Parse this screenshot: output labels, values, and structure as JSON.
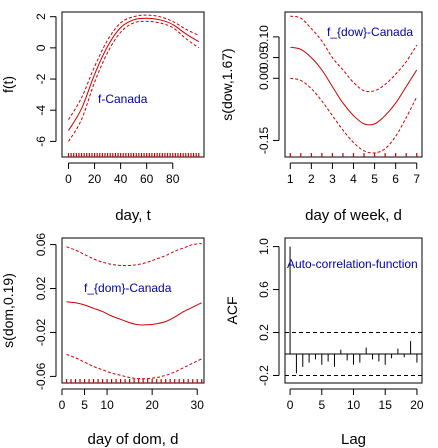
{
  "colors": {
    "fit": "#cc0000",
    "band": "#cc0000",
    "annotation": "#0000aa",
    "rug": "#cc0000",
    "ci": "#000000",
    "acf": "#000000"
  },
  "chart_data": [
    {
      "type": "line",
      "id": "trend",
      "annotation": "f-Canada",
      "xlabel": "day, t",
      "ylabel": "f(t)",
      "xlim": [
        -5,
        104
      ],
      "ylim": [
        -7,
        2.3
      ],
      "xticks": [
        0,
        20,
        40,
        60,
        80
      ],
      "yticks": [
        -6,
        -4,
        -2,
        0,
        2
      ],
      "grid": false,
      "rug": {
        "from": 0,
        "to": 100,
        "step": 2
      },
      "series": [
        {
          "role": "lower",
          "x": [
            0,
            10,
            20,
            30,
            40,
            50,
            60,
            70,
            80,
            90,
            100
          ],
          "y": [
            -6.0,
            -4.6,
            -2.2,
            -0.3,
            1.0,
            1.6,
            1.7,
            1.6,
            1.3,
            0.6,
            0.0
          ]
        },
        {
          "role": "fit",
          "x": [
            0,
            10,
            20,
            30,
            40,
            50,
            60,
            70,
            80,
            90,
            100
          ],
          "y": [
            -5.3,
            -3.9,
            -1.7,
            0.1,
            1.3,
            1.8,
            1.9,
            1.8,
            1.5,
            0.9,
            0.4
          ]
        },
        {
          "role": "upper",
          "x": [
            0,
            10,
            20,
            30,
            40,
            50,
            60,
            70,
            80,
            90,
            100
          ],
          "y": [
            -4.6,
            -3.2,
            -1.2,
            0.5,
            1.6,
            2.0,
            2.1,
            2.0,
            1.7,
            1.2,
            0.8
          ]
        }
      ]
    },
    {
      "type": "line",
      "id": "dow",
      "annotation": "f_{dow}-Canada",
      "xlabel": "day of week, d",
      "ylabel": "s(dow,1.67)",
      "xlim": [
        0.75,
        7.25
      ],
      "ylim": [
        -0.19,
        0.16
      ],
      "xticks": [
        1,
        2,
        3,
        4,
        5,
        6,
        7
      ],
      "yticks": [
        -0.15,
        0.0,
        0.05,
        0.1
      ],
      "ytick_labels": [
        "-0.15",
        "0.00",
        "0.05",
        "0.10"
      ],
      "grid": false,
      "rug": {
        "values": [
          1,
          1.5,
          2,
          2.5,
          3,
          3.5,
          4,
          4.5,
          5,
          5.5,
          6,
          6.5,
          7
        ]
      },
      "series": [
        {
          "role": "upper",
          "x": [
            1,
            1.5,
            2,
            2.5,
            3,
            3.5,
            4,
            4.5,
            5,
            5.5,
            6,
            6.5,
            7
          ],
          "y": [
            0.15,
            0.145,
            0.12,
            0.09,
            0.05,
            0.02,
            -0.01,
            -0.03,
            -0.03,
            -0.015,
            0.01,
            0.04,
            0.08
          ]
        },
        {
          "role": "fit",
          "x": [
            1,
            1.5,
            2,
            2.5,
            3,
            3.5,
            4,
            4.5,
            5,
            5.5,
            6,
            6.5,
            7
          ],
          "y": [
            0.075,
            0.07,
            0.05,
            0.02,
            -0.02,
            -0.06,
            -0.09,
            -0.11,
            -0.11,
            -0.09,
            -0.06,
            -0.02,
            0.02
          ]
        },
        {
          "role": "lower",
          "x": [
            1,
            1.5,
            2,
            2.5,
            3,
            3.5,
            4,
            4.5,
            5,
            5.5,
            6,
            6.5,
            7
          ],
          "y": [
            0.0,
            -0.005,
            -0.025,
            -0.055,
            -0.09,
            -0.125,
            -0.155,
            -0.175,
            -0.18,
            -0.17,
            -0.14,
            -0.095,
            -0.045
          ]
        }
      ]
    },
    {
      "type": "line",
      "id": "dom",
      "annotation": "f_{dom}-Canada",
      "xlabel": "day of dom, d",
      "ylabel": "s(dom,0.19)",
      "xlim": [
        0,
        31.5
      ],
      "ylim": [
        -0.066,
        0.066
      ],
      "xticks": [
        0,
        5,
        10,
        20,
        30
      ],
      "yticks": [
        -0.06,
        -0.02,
        0.02,
        0.06
      ],
      "ytick_labels": [
        "-0.06",
        "-0.02",
        "0.02",
        "0.06"
      ],
      "grid": false,
      "rug": {
        "from": 1,
        "to": 31,
        "step": 1
      },
      "series": [
        {
          "role": "upper",
          "x": [
            1,
            3,
            5,
            7,
            9,
            11,
            13,
            15,
            17,
            19,
            21,
            23,
            25,
            27,
            29,
            31
          ],
          "y": [
            0.058,
            0.055,
            0.051,
            0.047,
            0.044,
            0.042,
            0.041,
            0.041,
            0.042,
            0.044,
            0.047,
            0.05,
            0.054,
            0.057,
            0.06,
            0.061
          ]
        },
        {
          "role": "fit",
          "x": [
            1,
            3,
            5,
            7,
            9,
            11,
            13,
            15,
            17,
            19,
            21,
            23,
            25,
            27,
            29,
            31
          ],
          "y": [
            0.008,
            0.007,
            0.005,
            0.002,
            -0.001,
            -0.005,
            -0.008,
            -0.011,
            -0.013,
            -0.013,
            -0.012,
            -0.01,
            -0.006,
            -0.001,
            0.003,
            0.007
          ]
        },
        {
          "role": "lower",
          "x": [
            1,
            3,
            5,
            7,
            9,
            11,
            13,
            15,
            17,
            19,
            21,
            23,
            25,
            27,
            29,
            31
          ],
          "y": [
            -0.04,
            -0.043,
            -0.047,
            -0.051,
            -0.054,
            -0.057,
            -0.059,
            -0.061,
            -0.062,
            -0.062,
            -0.061,
            -0.059,
            -0.056,
            -0.052,
            -0.048,
            -0.044
          ]
        }
      ]
    },
    {
      "type": "bar",
      "id": "acf",
      "annotation": "Auto-correlation-function",
      "xlabel": "Lag",
      "ylabel": "ACF",
      "xlim": [
        -0.8,
        20.8
      ],
      "ylim": [
        -0.27,
        1.08
      ],
      "xticks": [
        0,
        5,
        10,
        15,
        20
      ],
      "yticks": [
        -0.2,
        0.2,
        0.6,
        1.0
      ],
      "ytick_labels": [
        "-0.2",
        "0.2",
        "0.6",
        "1.0"
      ],
      "grid": false,
      "ci": 0.2,
      "lags": [
        0,
        1,
        2,
        3,
        4,
        5,
        6,
        7,
        8,
        9,
        10,
        11,
        12,
        13,
        14,
        15,
        16,
        17,
        18,
        19,
        20
      ],
      "values": [
        1.0,
        -0.18,
        -0.12,
        -0.08,
        -0.05,
        -0.1,
        -0.07,
        -0.12,
        0.04,
        -0.06,
        -0.1,
        -0.08,
        0.06,
        -0.05,
        -0.07,
        -0.1,
        -0.04,
        0.05,
        -0.03,
        0.12,
        -0.08
      ]
    }
  ]
}
